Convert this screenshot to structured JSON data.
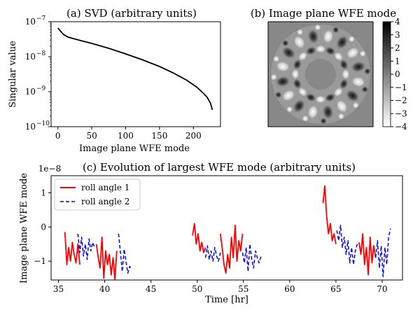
{
  "chart_data": [
    {
      "type": "line",
      "title": "(a) SVD (arbitrary units)",
      "xlabel": "Image plane WFE mode",
      "ylabel": "Singular value",
      "yscale": "log",
      "xlim": [
        -10,
        240
      ],
      "ylim_exp": [
        -10,
        -7
      ],
      "x_ticks": [
        0,
        50,
        100,
        150,
        200
      ],
      "y_ticks": [
        {
          "exp": -10,
          "label_base": "10",
          "label_exp": "−10"
        },
        {
          "exp": -9,
          "label_base": "10",
          "label_exp": "−9"
        },
        {
          "exp": -8,
          "label_base": "10",
          "label_exp": "−8"
        },
        {
          "exp": -7,
          "label_base": "10",
          "label_exp": "−7"
        }
      ],
      "series": [
        {
          "name": "singular values",
          "color": "#000000",
          "x": [
            0,
            3,
            8,
            15,
            30,
            50,
            75,
            100,
            125,
            150,
            170,
            190,
            205,
            215,
            220,
            225,
            228
          ],
          "log10_y": [
            -7.18,
            -7.25,
            -7.36,
            -7.44,
            -7.52,
            -7.62,
            -7.76,
            -7.92,
            -8.09,
            -8.28,
            -8.46,
            -8.67,
            -8.87,
            -9.05,
            -9.15,
            -9.32,
            -9.52
          ]
        }
      ]
    },
    {
      "type": "heatmap",
      "title": "(b) Image plane WFE mode",
      "colorbar_ticks": [
        "4",
        "3",
        "2",
        "1",
        "0",
        "−1",
        "−2",
        "−3",
        "−4"
      ],
      "vmin": -4,
      "vmax": 4,
      "colormap": "gray_r",
      "pattern": {
        "kind": "annular ripple",
        "outer_radius_frac": 0.95,
        "inner_radius_frac": 0.3,
        "lobes": 8
      }
    },
    {
      "type": "line",
      "title": "(c) Evolution of largest WFE mode (arbitrary units)",
      "xlabel": "Time [hr]",
      "ylabel": "Image plane WFE mode",
      "scale_note": "1e−8",
      "xlim": [
        34.2,
        72.2
      ],
      "ylim": [
        -1.55,
        1.5
      ],
      "x_ticks": [
        35,
        40,
        45,
        50,
        55,
        60,
        65,
        70
      ],
      "y_ticks": [
        1,
        0,
        -1
      ],
      "legend_position": "top-left",
      "series": [
        {
          "name": "roll angle 1",
          "color": "#ff0000",
          "style": "solid",
          "segments": [
            {
              "x": [
                35.7,
                35.9,
                36.1,
                36.3,
                36.5,
                36.7,
                36.9,
                37.1,
                37.3
              ],
              "y": [
                -0.15,
                -1.1,
                -0.6,
                -1.0,
                -0.45,
                -0.8,
                -1.05,
                -0.5,
                -1.1
              ]
            },
            {
              "x": [
                39.1,
                39.3,
                39.5,
                39.7,
                39.9,
                40.1,
                40.3,
                40.5,
                40.7,
                40.9,
                41.1,
                41.3
              ],
              "y": [
                -0.5,
                -0.9,
                -1.2,
                -0.3,
                -1.5,
                -0.7,
                -1.1,
                -0.8,
                -1.4,
                -0.9,
                -1.55,
                -0.7
              ]
            },
            {
              "x": [
                49.5,
                49.7,
                49.9,
                50.1,
                50.3,
                50.5,
                50.7,
                50.9
              ],
              "y": [
                -0.25,
                0.1,
                -0.5,
                -0.2,
                -0.7,
                -0.45,
                -0.75,
                -0.6
              ]
            },
            {
              "x": [
                52.5,
                52.7,
                52.9,
                53.1,
                53.3,
                53.5,
                53.7,
                53.9,
                54.1,
                54.3,
                54.5,
                54.7,
                54.9
              ],
              "y": [
                -0.2,
                -0.6,
                -1.1,
                -1.35,
                -0.8,
                -1.2,
                -0.3,
                -0.9,
                0.05,
                -1.0,
                -0.4,
                -0.7,
                -0.2
              ]
            },
            {
              "x": [
                63.6,
                63.8,
                64.0,
                64.2,
                64.4,
                64.6,
                64.8,
                65.0
              ],
              "y": [
                0.7,
                1.2,
                0.3,
                -0.2,
                0.1,
                -0.4,
                -0.2,
                -0.5
              ]
            },
            {
              "x": [
                67.5,
                67.7,
                67.9,
                68.1,
                68.3,
                68.5,
                68.7,
                68.9,
                69.1,
                69.3
              ],
              "y": [
                -0.45,
                -0.8,
                -0.2,
                -1.1,
                -0.6,
                -1.4,
                -0.3,
                -1.05,
                -0.55,
                -0.9
              ]
            }
          ]
        },
        {
          "name": "roll angle 2",
          "color": "#0000ff",
          "style": "dashed",
          "segments": [
            {
              "x": [
                37.1,
                37.3,
                37.5,
                37.7,
                37.9,
                38.1,
                38.3,
                38.5,
                38.7,
                38.9
              ],
              "y": [
                -0.2,
                -0.75,
                -0.3,
                -0.85,
                -0.5,
                -0.95,
                -0.35,
                -0.7,
                -0.45,
                -0.6
              ]
            },
            {
              "x": [
                41.5,
                41.7,
                41.9,
                42.1,
                42.3,
                42.5,
                42.7,
                42.9
              ],
              "y": [
                -0.2,
                -0.75,
                -1.3,
                -0.65,
                -1.0,
                -1.35,
                -1.15,
                -1.25
              ]
            },
            {
              "x": [
                50.9,
                51.1,
                51.3,
                51.5,
                51.7,
                51.9,
                52.1,
                52.3,
                52.5
              ],
              "y": [
                -0.9,
                -0.55,
                -0.95,
                -0.7,
                -1.0,
                -0.6,
                -0.85,
                -1.0,
                -0.75
              ]
            },
            {
              "x": [
                54.9,
                55.1,
                55.3,
                55.5,
                55.7,
                55.9,
                56.1,
                56.3,
                56.5,
                56.7,
                56.9
              ],
              "y": [
                -0.75,
                -1.05,
                -0.6,
                -1.3,
                -0.5,
                -0.95,
                -1.2,
                -0.7,
                -0.9,
                -1.05,
                -0.85
              ]
            },
            {
              "x": [
                65.1,
                65.3,
                65.5,
                65.7,
                65.9,
                66.1,
                66.3,
                66.5,
                66.7,
                66.9,
                67.1,
                67.3
              ],
              "y": [
                -0.1,
                -0.4,
                0.05,
                -0.6,
                -0.3,
                -0.8,
                -0.4,
                -1.05,
                -0.6,
                -1.1,
                -0.7,
                -0.5
              ]
            },
            {
              "x": [
                69.3,
                69.5,
                69.7,
                69.9,
                70.1,
                70.3,
                70.5,
                70.7,
                70.9
              ],
              "y": [
                -0.9,
                -0.4,
                -1.2,
                -0.55,
                -1.45,
                -0.6,
                -1.1,
                -0.3,
                -0.05
              ]
            }
          ]
        }
      ]
    }
  ]
}
